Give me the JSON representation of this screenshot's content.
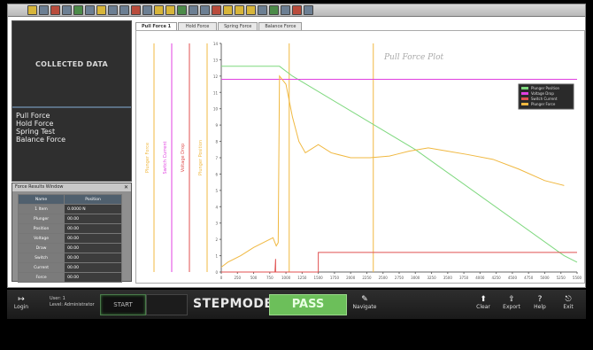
{
  "toolbar": {
    "icons": [
      "toolbar-icon",
      "toolbar-icon",
      "toolbar-icon",
      "toolbar-icon",
      "toolbar-icon",
      "toolbar-icon",
      "toolbar-icon",
      "toolbar-icon",
      "toolbar-icon",
      "toolbar-icon",
      "toolbar-icon",
      "toolbar-icon",
      "toolbar-icon",
      "toolbar-icon",
      "toolbar-icon",
      "toolbar-icon",
      "toolbar-icon",
      "toolbar-icon",
      "toolbar-icon",
      "toolbar-icon",
      "toolbar-icon",
      "toolbar-icon",
      "toolbar-icon",
      "toolbar-icon",
      "toolbar-icon"
    ]
  },
  "panel": {
    "title": "COLLECTED DATA",
    "nav": [
      "Pull Force",
      "Hold Force",
      "Spring Test",
      "Balance Force"
    ]
  },
  "results": {
    "title": "Force Results Window",
    "headers": [
      "Name",
      "Position"
    ],
    "rows": [
      {
        "name": "1 Item",
        "value": "0.0000 N"
      },
      {
        "name": "Plunger",
        "value": "00.00"
      },
      {
        "name": "Position",
        "value": "00.00"
      },
      {
        "name": "Voltage",
        "value": "00.00"
      },
      {
        "name": "Draw",
        "value": "00.00"
      },
      {
        "name": "Switch",
        "value": "00.00"
      },
      {
        "name": "Current",
        "value": "00.00"
      },
      {
        "name": "Force",
        "value": "00.00"
      }
    ]
  },
  "tabs": [
    "Pull Force 1",
    "Hold Force",
    "Spring Force",
    "Balance Force"
  ],
  "chart_data": {
    "type": "line",
    "title": "Pull Force Plot",
    "x_ticks": [
      "0",
      "250",
      "500",
      "750",
      "1000",
      "1250",
      "1500",
      "1750",
      "2000",
      "2250",
      "2500",
      "2750",
      "3000",
      "3250",
      "3500",
      "3750",
      "4000",
      "4250",
      "4500",
      "4750",
      "5000",
      "5250",
      "5500"
    ],
    "xlim": [
      0,
      5500
    ],
    "ylim": [
      0,
      14
    ],
    "y_ticks": [
      "0",
      "1",
      "2",
      "3",
      "4",
      "5",
      "6",
      "7",
      "8",
      "9",
      "10",
      "11",
      "12",
      "13",
      "14"
    ],
    "ylabels": [
      "Plunger Force",
      "Switch Current",
      "Voltage Drop",
      "Plunger Position"
    ],
    "legend": [
      "Plunger Position",
      "Voltage Drop",
      "Switch Current",
      "Plunger Force"
    ],
    "legend_placement": "top-right",
    "colors": {
      "green": "#7ed87e",
      "magenta": "#e040e0",
      "red": "#e05050",
      "orange": "#f0b840"
    },
    "series": [
      {
        "name": "Plunger Position",
        "color": "#7ed87e",
        "x": [
          0,
          900,
          1100,
          3000,
          5300,
          5500
        ],
        "y": [
          12.6,
          12.6,
          12.0,
          7.5,
          1.0,
          0.6
        ]
      },
      {
        "name": "Voltage Drop",
        "color": "#e040e0",
        "x": [
          0,
          5500
        ],
        "y": [
          11.8,
          11.8
        ]
      },
      {
        "name": "Switch Current",
        "color": "#e05050",
        "x": [
          0,
          830,
          830,
          840,
          840,
          1500,
          1500,
          5500
        ],
        "y": [
          0,
          0,
          0,
          0.8,
          0,
          0,
          1.2,
          1.2
        ]
      },
      {
        "name": "Plunger Force",
        "color": "#f0b840",
        "x": [
          0,
          100,
          300,
          500,
          700,
          800,
          850,
          880,
          900,
          1000,
          1100,
          1200,
          1300,
          1500,
          1700,
          2000,
          2300,
          2600,
          2700,
          2900,
          3200,
          3500,
          3800,
          4200,
          4600,
          5000,
          5300
        ],
        "y": [
          0.3,
          0.6,
          1.0,
          1.5,
          1.9,
          2.1,
          1.6,
          1.8,
          12.0,
          11.5,
          9.5,
          8.0,
          7.3,
          7.8,
          7.3,
          7.0,
          7.0,
          7.1,
          7.2,
          7.4,
          7.6,
          7.4,
          7.2,
          6.9,
          6.3,
          5.6,
          5.3
        ]
      }
    ],
    "vlines": [
      {
        "x": 1050,
        "color": "#f0b840"
      },
      {
        "x": 2350,
        "color": "#f0b840"
      }
    ]
  },
  "bottom": {
    "login_label": "Login",
    "user_line1": "User: 1",
    "user_line2": "Level: Administrator",
    "start_label": "START",
    "stepmode_label": "STEPMODE",
    "pass_label": "PASS",
    "navigate_label": "Navigate",
    "right_buttons": [
      "Clear",
      "Export",
      "Help",
      "Exit"
    ]
  }
}
